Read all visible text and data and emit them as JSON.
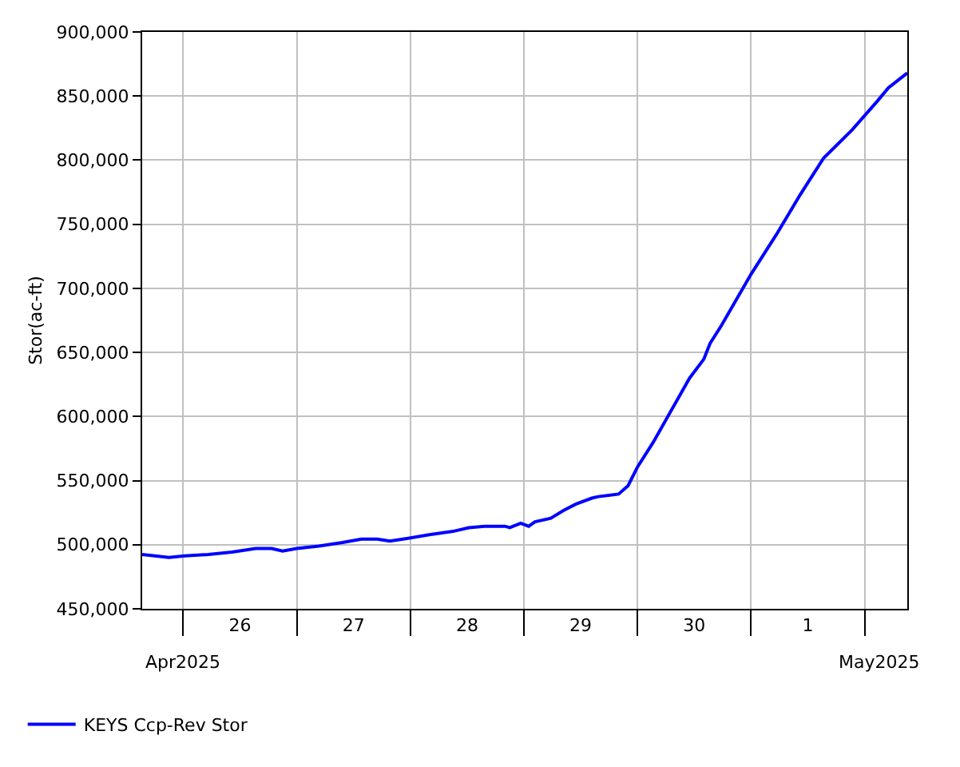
{
  "chart_data": {
    "type": "line",
    "ylabel": "Stor(ac-ft)",
    "x": [
      "2025-04-25T15:20",
      "2025-04-25T21:00",
      "2025-04-26T00:20",
      "2025-04-26T05:20",
      "2025-04-26T10:20",
      "2025-04-26T15:20",
      "2025-04-26T18:40",
      "2025-04-26T21:00",
      "2025-04-27T00:00",
      "2025-04-27T04:40",
      "2025-04-27T09:40",
      "2025-04-27T13:40",
      "2025-04-27T17:00",
      "2025-04-27T19:40",
      "2025-04-27T23:00",
      "2025-04-28T04:00",
      "2025-04-28T09:00",
      "2025-04-28T12:20",
      "2025-04-28T15:40",
      "2025-04-28T20:00",
      "2025-04-28T21:00",
      "2025-04-28T23:20",
      "2025-04-29T01:00",
      "2025-04-29T02:20",
      "2025-04-29T05:40",
      "2025-04-29T08:20",
      "2025-04-29T11:00",
      "2025-04-29T14:20",
      "2025-04-29T15:40",
      "2025-04-29T20:00",
      "2025-04-29T22:00",
      "2025-04-30T00:00",
      "2025-04-30T03:20",
      "2025-04-30T07:00",
      "2025-04-30T11:00",
      "2025-04-30T14:00",
      "2025-04-30T15:20",
      "2025-04-30T17:40",
      "2025-05-01T00:00",
      "2025-05-01T05:20",
      "2025-05-01T10:20",
      "2025-05-01T15:20",
      "2025-05-01T21:20",
      "2025-05-02T02:40",
      "2025-05-02T05:00",
      "2025-05-02T09:00"
    ],
    "series": [
      {
        "name": "KEYS Ccp-Rev Stor",
        "color": "#0000ff",
        "values": [
          492400,
          490000,
          491300,
          492400,
          494300,
          497100,
          497000,
          495100,
          497000,
          498900,
          501700,
          504400,
          504400,
          502900,
          504700,
          507800,
          510400,
          513300,
          514400,
          514400,
          513300,
          516700,
          514400,
          517900,
          520600,
          526700,
          531700,
          536300,
          537500,
          539500,
          546000,
          560700,
          580000,
          603900,
          630000,
          644700,
          657100,
          670600,
          711100,
          741900,
          772800,
          801700,
          823600,
          846000,
          856400,
          868000
        ]
      }
    ],
    "xlim": [
      "2025-04-25T15:20",
      "2025-05-02T09:00"
    ],
    "xticks": [
      {
        "value": "2025-04-26",
        "label": null
      },
      {
        "value": "2025-04-26T12:00",
        "label": "26"
      },
      {
        "value": "2025-04-27",
        "label": null
      },
      {
        "value": "2025-04-27T12:00",
        "label": "27"
      },
      {
        "value": "2025-04-28",
        "label": null
      },
      {
        "value": "2025-04-28T12:00",
        "label": "28"
      },
      {
        "value": "2025-04-29",
        "label": null
      },
      {
        "value": "2025-04-29T12:00",
        "label": "29"
      },
      {
        "value": "2025-04-30",
        "label": null
      },
      {
        "value": "2025-04-30T12:00",
        "label": "30"
      },
      {
        "value": "2025-05-01",
        "label": null
      },
      {
        "value": "2025-05-01T12:00",
        "label": "1"
      },
      {
        "value": "2025-05-02",
        "label": null
      }
    ],
    "ylim": [
      450000,
      900000
    ],
    "yticks": [
      {
        "value": 450000,
        "label": "450,000"
      },
      {
        "value": 500000,
        "label": "500,000"
      },
      {
        "value": 550000,
        "label": "550,000"
      },
      {
        "value": 600000,
        "label": "600,000"
      },
      {
        "value": 650000,
        "label": "650,000"
      },
      {
        "value": 700000,
        "label": "700,000"
      },
      {
        "value": 750000,
        "label": "750,000"
      },
      {
        "value": 800000,
        "label": "800,000"
      },
      {
        "value": 850000,
        "label": "850,000"
      },
      {
        "value": 900000,
        "label": "900,000"
      }
    ],
    "annotations": [
      "Apr2025",
      "May2025"
    ],
    "grid": true,
    "legend": "bottom left",
    "marker": "none",
    "line_style": "solid"
  }
}
